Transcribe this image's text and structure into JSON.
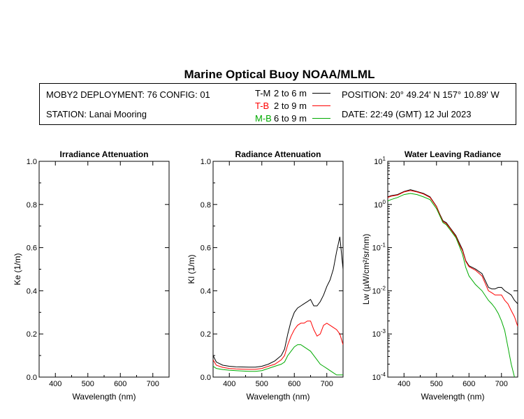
{
  "header": {
    "title": "Marine Optical Buoy NOAA/MLML",
    "deployment": "MOBY2 DEPLOYMENT: 76 CONFIG: 01",
    "station": "STATION: Lanai Mooring",
    "position": "POSITION: 20° 49.24' N   157° 10.89' W",
    "date": "DATE: 22:49 (GMT) 12 Jul 2023",
    "legend": [
      {
        "code": "T-M",
        "range": "2 to 6  m",
        "color": "#000000"
      },
      {
        "code": "T-B",
        "range": "2 to 9  m",
        "color": "#ff0000"
      },
      {
        "code": "M-B",
        "range": "6 to 9  m",
        "color": "#00aa00"
      }
    ]
  },
  "chart_data": [
    {
      "type": "line",
      "title": "Irradiance Attenuation",
      "xlabel": "Wavelength (nm)",
      "ylabel": "Ke  (1/m)",
      "xlim": [
        350,
        750
      ],
      "ylim": [
        0.0,
        1.0
      ],
      "xticks": [
        "400",
        "500",
        "600",
        "700"
      ],
      "yticks": [
        "0.0",
        "0.2",
        "0.4",
        "0.6",
        "0.8",
        "1.0"
      ],
      "series": []
    },
    {
      "type": "line",
      "title": "Radiance Attenuation",
      "xlabel": "Wavelength (nm)",
      "ylabel": "Kl  (1/m)",
      "xlim": [
        350,
        750
      ],
      "ylim": [
        0.0,
        1.0
      ],
      "xticks": [
        "400",
        "500",
        "600",
        "700"
      ],
      "yticks": [
        "0.0",
        "0.2",
        "0.4",
        "0.6",
        "0.8",
        "1.0"
      ],
      "series": [
        {
          "name": "T-M",
          "color": "#000000",
          "x": [
            350,
            360,
            380,
            400,
            420,
            440,
            460,
            480,
            500,
            520,
            540,
            560,
            570,
            580,
            590,
            600,
            610,
            620,
            630,
            640,
            650,
            660,
            670,
            680,
            690,
            700,
            710,
            720,
            730,
            740,
            750
          ],
          "y": [
            0.1,
            0.07,
            0.055,
            0.05,
            0.048,
            0.047,
            0.046,
            0.046,
            0.05,
            0.06,
            0.075,
            0.1,
            0.13,
            0.2,
            0.26,
            0.3,
            0.32,
            0.33,
            0.34,
            0.35,
            0.36,
            0.33,
            0.33,
            0.35,
            0.38,
            0.42,
            0.45,
            0.5,
            0.58,
            0.65,
            0.5
          ]
        },
        {
          "name": "T-B",
          "color": "#ff0000",
          "x": [
            350,
            360,
            380,
            400,
            420,
            440,
            460,
            480,
            500,
            520,
            540,
            560,
            570,
            580,
            590,
            600,
            610,
            620,
            630,
            640,
            650,
            660,
            670,
            680,
            690,
            700,
            710,
            720,
            730,
            740,
            750
          ],
          "y": [
            0.08,
            0.055,
            0.045,
            0.04,
            0.038,
            0.037,
            0.036,
            0.036,
            0.04,
            0.05,
            0.06,
            0.08,
            0.1,
            0.15,
            0.19,
            0.22,
            0.24,
            0.25,
            0.25,
            0.26,
            0.26,
            0.22,
            0.19,
            0.2,
            0.24,
            0.25,
            0.24,
            0.23,
            0.22,
            0.2,
            0.15
          ]
        },
        {
          "name": "M-B",
          "color": "#00aa00",
          "x": [
            350,
            360,
            380,
            400,
            420,
            440,
            460,
            480,
            500,
            520,
            540,
            560,
            570,
            580,
            590,
            600,
            610,
            620,
            630,
            640,
            650,
            660,
            670,
            680,
            690,
            700,
            710,
            720,
            730,
            740,
            750
          ],
          "y": [
            0.05,
            0.04,
            0.035,
            0.032,
            0.03,
            0.028,
            0.027,
            0.027,
            0.03,
            0.04,
            0.05,
            0.06,
            0.07,
            0.1,
            0.12,
            0.14,
            0.15,
            0.15,
            0.14,
            0.13,
            0.12,
            0.1,
            0.08,
            0.06,
            0.05,
            0.04,
            0.03,
            0.02,
            0.01,
            0.01,
            0.01
          ]
        }
      ]
    },
    {
      "type": "line",
      "title": "Water Leaving Radiance",
      "xlabel": "Wavelength (nm)",
      "ylabel": "Lw  (µW/cm²/sr/nm)",
      "xscale": "linear",
      "yscale": "log",
      "xlim": [
        350,
        750
      ],
      "ylim": [
        0.0001,
        10
      ],
      "xticks": [
        "400",
        "500",
        "600",
        "700"
      ],
      "yticks": [
        "10^1",
        "10^0",
        "10^-1",
        "10^-2",
        "10^-3",
        "10^-4"
      ],
      "series": [
        {
          "name": "T-M",
          "color": "#000000",
          "x": [
            350,
            360,
            380,
            400,
            420,
            440,
            460,
            480,
            500,
            510,
            520,
            530,
            540,
            560,
            570,
            580,
            590,
            600,
            620,
            640,
            660,
            670,
            680,
            690,
            700,
            710,
            720,
            730,
            740,
            750
          ],
          "y": [
            1.5,
            1.6,
            1.7,
            2.0,
            2.2,
            2.0,
            1.8,
            1.5,
            0.9,
            0.6,
            0.42,
            0.38,
            0.3,
            0.19,
            0.13,
            0.09,
            0.05,
            0.038,
            0.032,
            0.025,
            0.012,
            0.011,
            0.011,
            0.012,
            0.012,
            0.01,
            0.009,
            0.008,
            0.006,
            0.005
          ]
        },
        {
          "name": "T-B",
          "color": "#ff0000",
          "x": [
            350,
            360,
            380,
            400,
            420,
            440,
            460,
            480,
            500,
            510,
            520,
            530,
            540,
            560,
            570,
            580,
            590,
            600,
            620,
            640,
            660,
            670,
            680,
            690,
            700,
            710,
            720,
            730,
            740,
            750
          ],
          "y": [
            1.45,
            1.55,
            1.65,
            1.95,
            2.1,
            1.95,
            1.75,
            1.45,
            0.88,
            0.58,
            0.4,
            0.36,
            0.29,
            0.18,
            0.12,
            0.085,
            0.048,
            0.036,
            0.03,
            0.022,
            0.01,
            0.009,
            0.008,
            0.008,
            0.008,
            0.006,
            0.005,
            0.0035,
            0.0025,
            0.0015
          ]
        },
        {
          "name": "M-B",
          "color": "#00aa00",
          "x": [
            350,
            360,
            380,
            400,
            420,
            440,
            460,
            480,
            500,
            510,
            520,
            530,
            540,
            560,
            570,
            580,
            590,
            600,
            620,
            640,
            660,
            670,
            680,
            690,
            700,
            710,
            720,
            730,
            740
          ],
          "y": [
            1.2,
            1.3,
            1.45,
            1.7,
            1.8,
            1.7,
            1.5,
            1.3,
            0.8,
            0.55,
            0.38,
            0.34,
            0.27,
            0.17,
            0.11,
            0.07,
            0.035,
            0.022,
            0.014,
            0.01,
            0.006,
            0.005,
            0.004,
            0.003,
            0.002,
            0.0012,
            0.0005,
            0.0002,
            0.0001
          ]
        }
      ]
    }
  ]
}
